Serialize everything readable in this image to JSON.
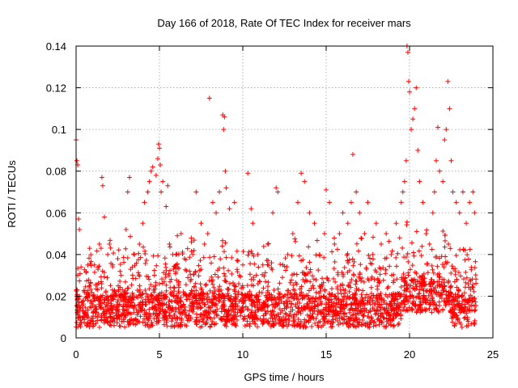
{
  "chart_data": {
    "type": "scatter",
    "title": "Day 166 of 2018, Rate Of TEC Index for receiver mars",
    "xlabel": "GPS time / hours",
    "ylabel": "ROTI / TECUs",
    "xlim": [
      0,
      25
    ],
    "ylim": [
      0,
      0.14
    ],
    "xticks": [
      0,
      5,
      10,
      15,
      20,
      25
    ],
    "yticks": [
      0,
      0.02,
      0.04,
      0.06,
      0.08,
      0.1,
      0.12,
      0.14
    ],
    "xtick_labels": [
      "0",
      "5",
      "10",
      "15",
      "20",
      "25"
    ],
    "ytick_labels": [
      "0",
      "0.02",
      "0.04",
      "0.06",
      "0.08",
      "0.1",
      "0.12",
      "0.14"
    ],
    "grid": true,
    "marker": "+",
    "color": "#ff0000",
    "series": [
      {
        "name": "ROTI",
        "x": [
          0.0,
          0.05,
          0.1,
          0.15,
          0.2,
          0.05,
          0.1,
          0.08,
          0.1,
          0.3,
          0.5,
          0.8,
          1.1,
          1.4,
          1.5,
          1.55,
          1.6,
          1.7,
          1.9,
          2.0,
          2.2,
          2.5,
          2.7,
          3.0,
          3.1,
          3.2,
          3.5,
          3.8,
          4.0,
          4.1,
          4.3,
          4.4,
          4.5,
          4.6,
          4.8,
          4.9,
          4.95,
          5.0,
          5.05,
          5.1,
          5.2,
          5.4,
          5.5,
          5.6,
          5.8,
          6.0,
          6.3,
          6.5,
          6.8,
          7.0,
          7.2,
          7.5,
          7.7,
          7.9,
          8.0,
          8.2,
          8.4,
          8.6,
          8.8,
          8.85,
          8.9,
          8.95,
          9.0,
          9.2,
          9.5,
          9.8,
          10.0,
          10.3,
          10.5,
          10.6,
          10.9,
          11.2,
          11.5,
          11.8,
          12.0,
          12.1,
          12.4,
          12.7,
          13.0,
          13.3,
          13.5,
          13.7,
          14.0,
          14.3,
          14.6,
          14.9,
          15.0,
          15.2,
          15.5,
          15.8,
          16.0,
          16.3,
          16.5,
          16.6,
          16.8,
          17.0,
          17.3,
          17.5,
          17.8,
          18.0,
          18.3,
          18.6,
          18.9,
          19.2,
          19.5,
          19.6,
          19.7,
          19.8,
          19.85,
          19.9,
          19.95,
          20.0,
          20.1,
          20.2,
          20.3,
          20.4,
          20.5,
          20.6,
          20.8,
          21.0,
          21.2,
          21.4,
          21.5,
          21.6,
          21.7,
          21.8,
          22.0,
          22.1,
          22.2,
          22.3,
          22.4,
          22.5,
          22.6,
          22.8,
          23.0,
          23.2,
          23.4,
          23.6,
          23.8,
          23.9
        ],
        "y": [
          0.095,
          0.085,
          0.083,
          0.057,
          0.052,
          0.02,
          0.015,
          0.012,
          0.03,
          0.034,
          0.022,
          0.025,
          0.035,
          0.045,
          0.043,
          0.077,
          0.073,
          0.058,
          0.04,
          0.045,
          0.035,
          0.038,
          0.03,
          0.052,
          0.07,
          0.077,
          0.04,
          0.045,
          0.055,
          0.065,
          0.07,
          0.075,
          0.08,
          0.082,
          0.078,
          0.086,
          0.093,
          0.091,
          0.083,
          0.07,
          0.075,
          0.063,
          0.073,
          0.045,
          0.04,
          0.035,
          0.05,
          0.038,
          0.032,
          0.04,
          0.07,
          0.055,
          0.045,
          0.05,
          0.115,
          0.065,
          0.06,
          0.07,
          0.107,
          0.1,
          0.106,
          0.08,
          0.072,
          0.062,
          0.065,
          0.03,
          0.035,
          0.079,
          0.062,
          0.055,
          0.04,
          0.035,
          0.045,
          0.06,
          0.072,
          0.07,
          0.035,
          0.04,
          0.05,
          0.065,
          0.079,
          0.075,
          0.06,
          0.055,
          0.04,
          0.05,
          0.071,
          0.065,
          0.045,
          0.05,
          0.06,
          0.055,
          0.065,
          0.088,
          0.07,
          0.06,
          0.05,
          0.065,
          0.04,
          0.055,
          0.045,
          0.05,
          0.04,
          0.055,
          0.065,
          0.07,
          0.075,
          0.085,
          0.14,
          0.137,
          0.123,
          0.118,
          0.1,
          0.105,
          0.11,
          0.12,
          0.09,
          0.075,
          0.065,
          0.05,
          0.045,
          0.06,
          0.07,
          0.085,
          0.101,
          0.08,
          0.075,
          0.095,
          0.1,
          0.123,
          0.11,
          0.085,
          0.07,
          0.065,
          0.06,
          0.07,
          0.055,
          0.065,
          0.07,
          0.06
        ]
      }
    ]
  }
}
